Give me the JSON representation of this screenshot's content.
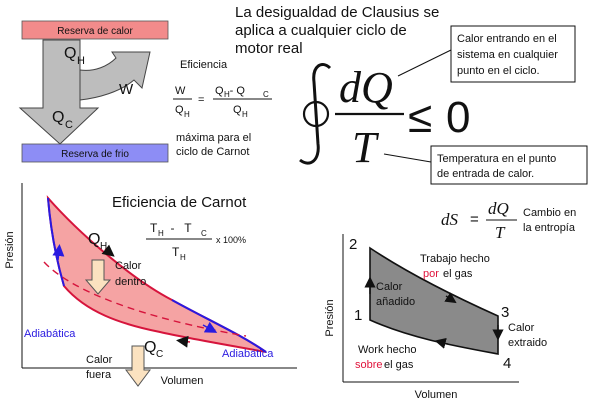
{
  "title": [
    "La desigualdad de Clausius se",
    "aplica a cualquier ciclo de",
    "motor real"
  ],
  "engine": {
    "hot_reservoir": "Reserva de calor",
    "cold_reservoir": "Reserva de frio",
    "qh_main": "Q",
    "qh_sub": "H",
    "w": "W",
    "qc_main": "Q",
    "qc_sub": "C"
  },
  "efficiency": {
    "label": "Eficiencia",
    "frac_w": "W",
    "frac_q_main": "Q",
    "frac_q_sub": "H",
    "equals": "=",
    "num": "Q  - Q",
    "num_sub1": "H",
    "num_sub2": "C",
    "den_main": "Q",
    "den_sub": "H",
    "note_line1": "máxima para el",
    "note_line2": "ciclo de Carnot"
  },
  "integral": {
    "dq": "dQ",
    "t": "T",
    "rel": "≤",
    "zero": "0"
  },
  "callouts": {
    "heat_in": [
      "Calor entrando en el",
      "sistema en cualquier",
      "punto en el ciclo."
    ],
    "temperature": [
      "Temperatura en el punto",
      "de entrada de calor."
    ]
  },
  "carnot": {
    "title": "Eficiencia de Carnot",
    "qh_main": "Q",
    "qh_sub": "H",
    "formula_num": "T    -   T",
    "num_sub1": "H",
    "num_sub2": "C",
    "formula_den": "T",
    "den_sub": "H",
    "percent": "x 100%",
    "heat_in": [
      "Calor",
      "dentro"
    ],
    "heat_out": [
      "Calor",
      "fuera"
    ],
    "qc_main": "Q",
    "qc_sub": "C",
    "adiabatic_left": "Adiabática",
    "adiabatic_right": "Adiabática",
    "xlabel": "Volumen",
    "ylabel": "Presión"
  },
  "entropy": {
    "ds": "dS",
    "eq": "=",
    "dq": "dQ",
    "t": "T",
    "label": [
      "Cambio en",
      "la entropía"
    ]
  },
  "cycle": {
    "points": [
      "1",
      "2",
      "3",
      "4"
    ],
    "heat_added": [
      "Calor",
      "añadido"
    ],
    "work_by": [
      "Trabajo hecho",
      "por",
      "el gas"
    ],
    "heat_extracted": [
      "Calor",
      "extraido"
    ],
    "work_on": [
      "Work hecho",
      "sobre",
      "el gas"
    ],
    "xlabel": "Volumen",
    "ylabel": "Presión"
  },
  "colors": {
    "hot": "#f28b8b",
    "cold": "#8d8df5",
    "arrow_gray": "#bdbdbd",
    "carnot_fill": "#f5a3a3",
    "carnot_stroke": "#d6143c",
    "adiabatic_blue": "#2a1ae0",
    "heat_arrow": "#fbe2c0",
    "cycle_gray": "#8a8a8a",
    "emph_red": "#e0143c"
  }
}
